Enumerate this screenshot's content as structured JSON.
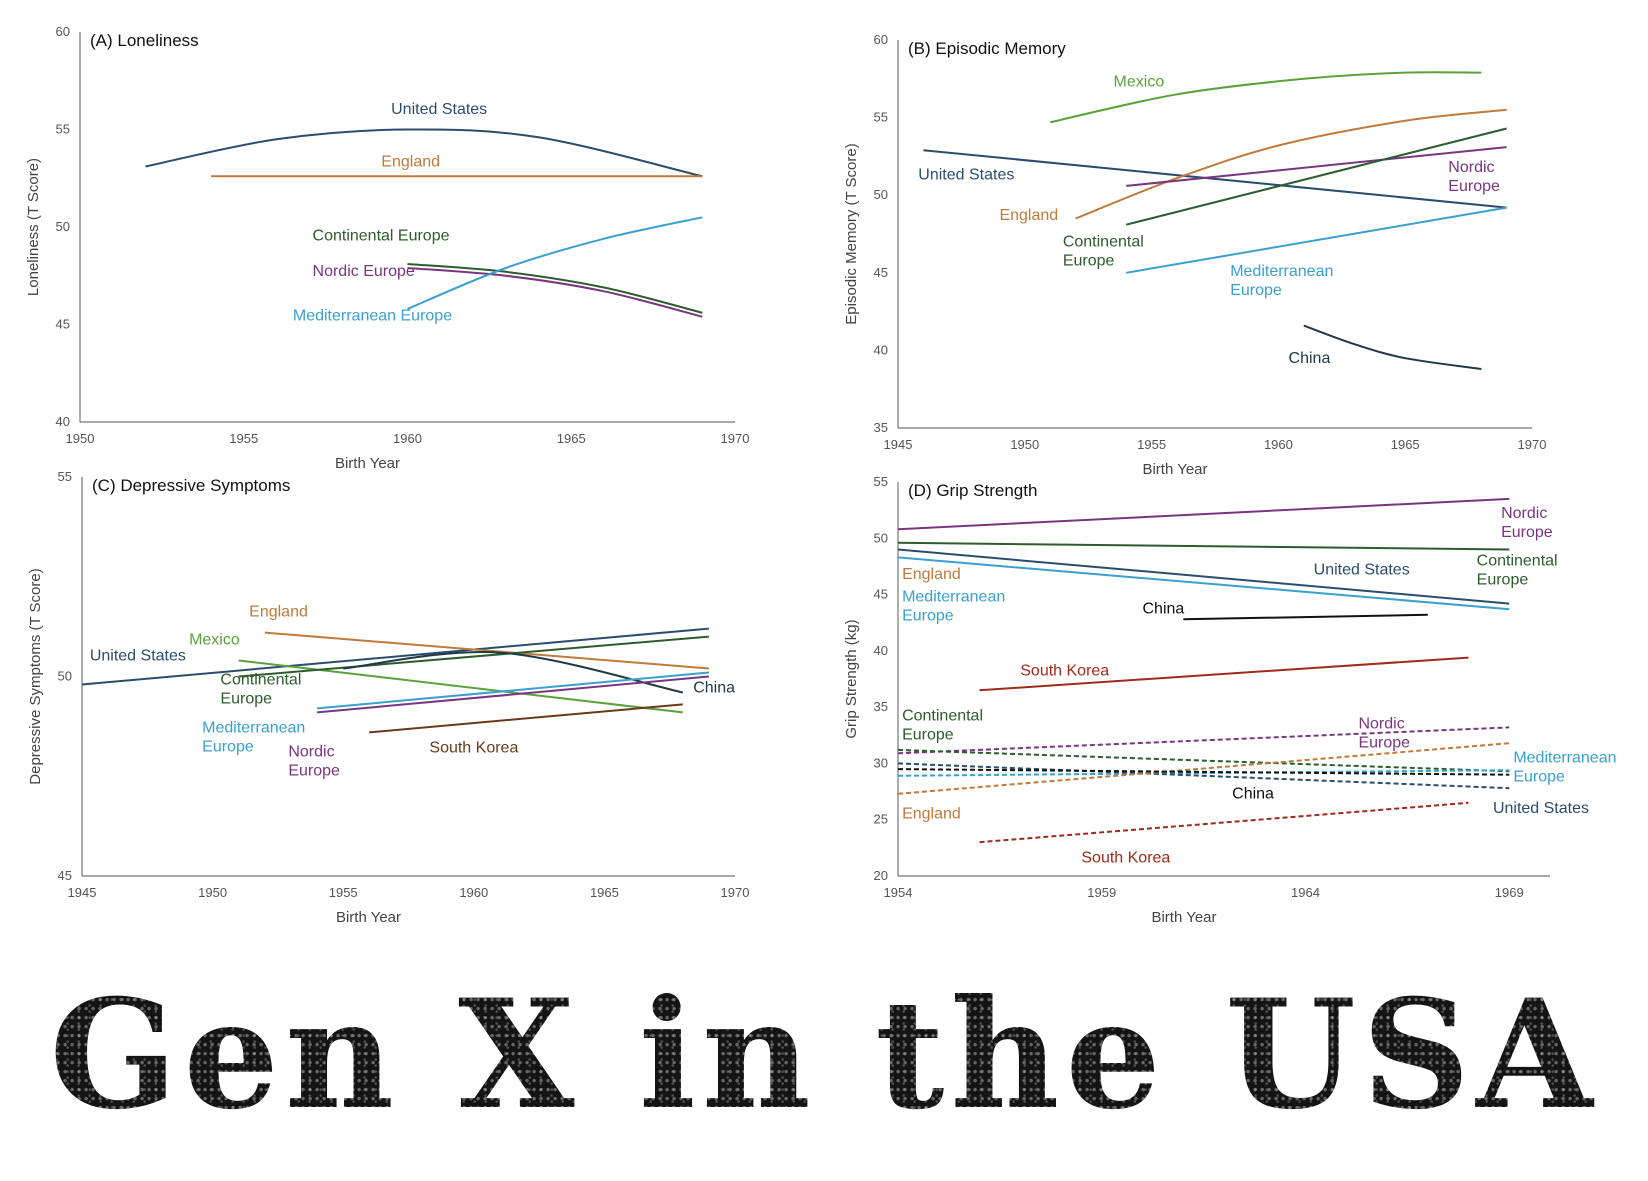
{
  "title_text": "Gen X in the USA",
  "chart_data": [
    {
      "id": "A",
      "type": "line",
      "title": "(A) Loneliness",
      "xlabel": "Birth Year",
      "ylabel": "Loneliness (T Score)",
      "xlim": [
        1950,
        1970
      ],
      "ylim": [
        40,
        60
      ],
      "xticks": [
        1950,
        1955,
        1960,
        1965,
        1970
      ],
      "yticks": [
        40,
        45,
        50,
        55,
        60
      ],
      "series": [
        {
          "name": "United States",
          "color": "#2a4d6e",
          "dash": false,
          "x": [
            1952,
            1956,
            1960,
            1964,
            1969
          ],
          "y": [
            53.1,
            54.5,
            55.0,
            54.6,
            52.6
          ],
          "label_pos": [
            1959.5,
            55.8
          ]
        },
        {
          "name": "England",
          "color": "#c07a3c",
          "dash": false,
          "x": [
            1954,
            1969
          ],
          "y": [
            52.6,
            52.6
          ],
          "label_pos": [
            1959.2,
            53.1
          ]
        },
        {
          "name": "Continental Europe",
          "color": "#2d5c2d",
          "dash": false,
          "x": [
            1960,
            1963,
            1966,
            1969
          ],
          "y": [
            48.1,
            47.7,
            46.9,
            45.6
          ],
          "label_pos": [
            1957.1,
            49.3
          ]
        },
        {
          "name": "Nordic Europe",
          "color": "#7a3580",
          "dash": false,
          "x": [
            1960,
            1963,
            1966,
            1969
          ],
          "y": [
            47.9,
            47.5,
            46.7,
            45.4
          ],
          "label_pos": [
            1957.1,
            47.5
          ]
        },
        {
          "name": "Mediterranean Europe",
          "color": "#3aa0cf",
          "dash": false,
          "x": [
            1960,
            1963,
            1966,
            1969
          ],
          "y": [
            45.8,
            47.9,
            49.4,
            50.5
          ],
          "label_pos": [
            1956.5,
            45.2
          ]
        }
      ]
    },
    {
      "id": "B",
      "type": "line",
      "title": "(B) Episodic Memory",
      "xlabel": "Birth Year",
      "ylabel": "Episodic Memory  (T Score)",
      "xlim": [
        1945,
        1970
      ],
      "ylim": [
        35,
        60
      ],
      "xticks": [
        1945,
        1950,
        1955,
        1960,
        1965,
        1970
      ],
      "yticks": [
        35,
        40,
        45,
        50,
        55,
        60
      ],
      "series": [
        {
          "name": "Mexico",
          "color": "#5aa23a",
          "dash": false,
          "x": [
            1951,
            1956,
            1961,
            1965,
            1968
          ],
          "y": [
            54.7,
            56.5,
            57.5,
            57.9,
            57.9
          ],
          "label_pos": [
            1953.5,
            57.0
          ]
        },
        {
          "name": "United States",
          "color": "#2a4d6e",
          "dash": false,
          "x": [
            1946,
            1969
          ],
          "y": [
            52.9,
            49.2
          ],
          "label_pos": [
            1945.8,
            51.0
          ]
        },
        {
          "name": "England",
          "color": "#c07a3c",
          "dash": false,
          "x": [
            1952,
            1956,
            1960,
            1965,
            1969
          ],
          "y": [
            48.5,
            51.1,
            53.2,
            54.8,
            55.5
          ],
          "label_pos": [
            1949.0,
            48.4
          ]
        },
        {
          "name": "Nordic Europe",
          "color": "#7a3580",
          "dash": false,
          "x": [
            1954,
            1969
          ],
          "y": [
            50.6,
            53.1
          ],
          "label_pos": [
            1966.7,
            51.5
          ],
          "label_lines": [
            "Nordic",
            "Europe"
          ]
        },
        {
          "name": "Continental Europe",
          "color": "#2d5c2d",
          "dash": false,
          "x": [
            1954,
            1969
          ],
          "y": [
            48.1,
            54.3
          ],
          "label_pos": [
            1951.5,
            46.7
          ],
          "label_lines": [
            "Continental",
            "Europe"
          ]
        },
        {
          "name": "Mediterranean Europe",
          "color": "#3aa0cf",
          "dash": false,
          "x": [
            1954,
            1969
          ],
          "y": [
            45.0,
            49.2
          ],
          "label_pos": [
            1958.1,
            44.8
          ],
          "label_lines": [
            "Mediterranean",
            "Europe"
          ]
        },
        {
          "name": "China",
          "color": "#1e3a4a",
          "dash": false,
          "x": [
            1961,
            1963,
            1965,
            1968
          ],
          "y": [
            41.6,
            40.4,
            39.5,
            38.8
          ],
          "label_pos": [
            1960.4,
            39.2
          ]
        }
      ]
    },
    {
      "id": "C",
      "type": "line",
      "title": "(C) Depressive Symptoms",
      "xlabel": "Birth Year",
      "ylabel": "Depressive Symptoms (T Score)",
      "xlim": [
        1945,
        1970
      ],
      "ylim": [
        45,
        55
      ],
      "xticks": [
        1945,
        1950,
        1955,
        1960,
        1965,
        1970
      ],
      "yticks": [
        45,
        50,
        55
      ],
      "series": [
        {
          "name": "United States",
          "color": "#2a4d6e",
          "dash": false,
          "x": [
            1945,
            1969
          ],
          "y": [
            49.8,
            51.2
          ],
          "label_pos": [
            1945.3,
            50.4
          ]
        },
        {
          "name": "England",
          "color": "#c07a3c",
          "dash": false,
          "x": [
            1952,
            1969
          ],
          "y": [
            51.1,
            50.2
          ],
          "label_pos": [
            1951.4,
            51.5
          ]
        },
        {
          "name": "Mexico",
          "color": "#5aa23a",
          "dash": false,
          "x": [
            1951,
            1968
          ],
          "y": [
            50.4,
            49.1
          ],
          "label_pos": [
            1949.1,
            50.8
          ]
        },
        {
          "name": "Continental Europe",
          "color": "#2d5c2d",
          "dash": false,
          "x": [
            1951,
            1969
          ],
          "y": [
            50.0,
            51.0
          ],
          "label_pos": [
            1950.3,
            49.8
          ],
          "label_lines": [
            "Continental",
            "Europe"
          ]
        },
        {
          "name": "China",
          "color": "#1e3a4a",
          "dash": false,
          "x": [
            1955,
            1961,
            1968
          ],
          "y": [
            50.2,
            50.6,
            49.6
          ],
          "label_pos": [
            1968.4,
            49.6
          ]
        },
        {
          "name": "Mediterranean Europe",
          "color": "#3aa0cf",
          "dash": false,
          "x": [
            1954,
            1969
          ],
          "y": [
            49.2,
            50.1
          ],
          "label_pos": [
            1949.6,
            48.6
          ],
          "label_lines": [
            "Mediterranean",
            "Europe"
          ]
        },
        {
          "name": "Nordic Europe",
          "color": "#7a3580",
          "dash": false,
          "x": [
            1954,
            1969
          ],
          "y": [
            49.1,
            50.0
          ],
          "label_pos": [
            1952.9,
            48.0
          ],
          "label_lines": [
            "Nordic",
            "Europe"
          ]
        },
        {
          "name": "South Korea",
          "color": "#6a3a1a",
          "dash": false,
          "x": [
            1956,
            1968
          ],
          "y": [
            48.6,
            49.3
          ],
          "label_pos": [
            1958.3,
            48.1
          ]
        }
      ]
    },
    {
      "id": "D",
      "type": "line",
      "title": "(D) Grip Strength",
      "xlabel": "Birth Year",
      "ylabel": "Grip Strength (kg)",
      "xlim": [
        1954,
        1970
      ],
      "ylim": [
        20,
        55
      ],
      "xticks": [
        1954,
        1959,
        1964,
        1969
      ],
      "yticks": [
        20,
        25,
        30,
        35,
        40,
        45,
        50,
        55
      ],
      "series": [
        {
          "name": "Nordic Europe",
          "color": "#7a3580",
          "dash": false,
          "x": [
            1954,
            1969
          ],
          "y": [
            50.8,
            53.5
          ],
          "label_pos": [
            1968.8,
            51.8
          ],
          "label_lines": [
            "Nordic",
            "Europe"
          ]
        },
        {
          "name": "Continental Europe",
          "color": "#2d5c2d",
          "dash": false,
          "x": [
            1954,
            1969
          ],
          "y": [
            49.6,
            49.0
          ],
          "label_pos": [
            1968.2,
            47.6
          ],
          "label_lines": [
            "Continental",
            "Europe"
          ]
        },
        {
          "name": "United States",
          "color": "#2a4d6e",
          "dash": false,
          "x": [
            1954,
            1969
          ],
          "y": [
            49.0,
            44.2
          ],
          "label_pos": [
            1964.2,
            46.8
          ]
        },
        {
          "name": "Mediterranean Europe",
          "color": "#3aa0cf",
          "dash": false,
          "x": [
            1954,
            1969
          ],
          "y": [
            48.3,
            43.7
          ],
          "label_pos": [
            1954.1,
            44.4
          ],
          "label_lines": [
            "Mediterranean",
            "Europe"
          ]
        },
        {
          "name": "England",
          "color": "#c07a3c",
          "dash": false,
          "x": [],
          "y": [],
          "label_pos": [
            1954.1,
            46.4
          ]
        },
        {
          "name": "China",
          "color": "#111111",
          "dash": false,
          "x": [
            1961,
            1967
          ],
          "y": [
            42.8,
            43.2
          ],
          "label_pos": [
            1960.0,
            43.3
          ]
        },
        {
          "name": "South Korea",
          "color": "#a02a1c",
          "dash": false,
          "x": [
            1956,
            1968
          ],
          "y": [
            36.5,
            39.4
          ],
          "label_pos": [
            1957.0,
            37.8
          ]
        },
        {
          "name": "Nordic Europe",
          "color": "#7a3580",
          "dash": true,
          "x": [
            1954,
            1969
          ],
          "y": [
            30.9,
            33.2
          ],
          "label_pos": [
            1965.3,
            33.1
          ],
          "label_lines": [
            "Nordic",
            "Europe"
          ]
        },
        {
          "name": "Continental Europe",
          "color": "#2d5c2d",
          "dash": true,
          "x": [
            1954,
            1969
          ],
          "y": [
            31.2,
            29.3
          ],
          "label_pos": [
            1954.1,
            33.8
          ],
          "label_lines": [
            "Continental",
            "Europe"
          ]
        },
        {
          "name": "Mediterranean Europe",
          "color": "#3aa0cf",
          "dash": true,
          "x": [
            1954,
            1969
          ],
          "y": [
            28.9,
            29.4
          ],
          "label_pos": [
            1969.1,
            30.1
          ],
          "label_lines": [
            "Mediterranean",
            "Europe"
          ]
        },
        {
          "name": "United States",
          "color": "#2a4d6e",
          "dash": true,
          "x": [
            1954,
            1969
          ],
          "y": [
            30.0,
            27.8
          ],
          "label_pos": [
            1968.6,
            25.6
          ]
        },
        {
          "name": "England",
          "color": "#c07a3c",
          "dash": true,
          "x": [
            1954,
            1969
          ],
          "y": [
            27.3,
            31.8
          ],
          "label_pos": [
            1954.1,
            25.1
          ]
        },
        {
          "name": "China",
          "color": "#111111",
          "dash": true,
          "x": [
            1954,
            1969
          ],
          "y": [
            29.5,
            29.0
          ],
          "label_pos": [
            1962.2,
            26.9
          ]
        },
        {
          "name": "South Korea",
          "color": "#a02a1c",
          "dash": true,
          "x": [
            1956,
            1968
          ],
          "y": [
            23.0,
            26.5
          ],
          "label_pos": [
            1958.5,
            21.2
          ]
        }
      ]
    }
  ]
}
